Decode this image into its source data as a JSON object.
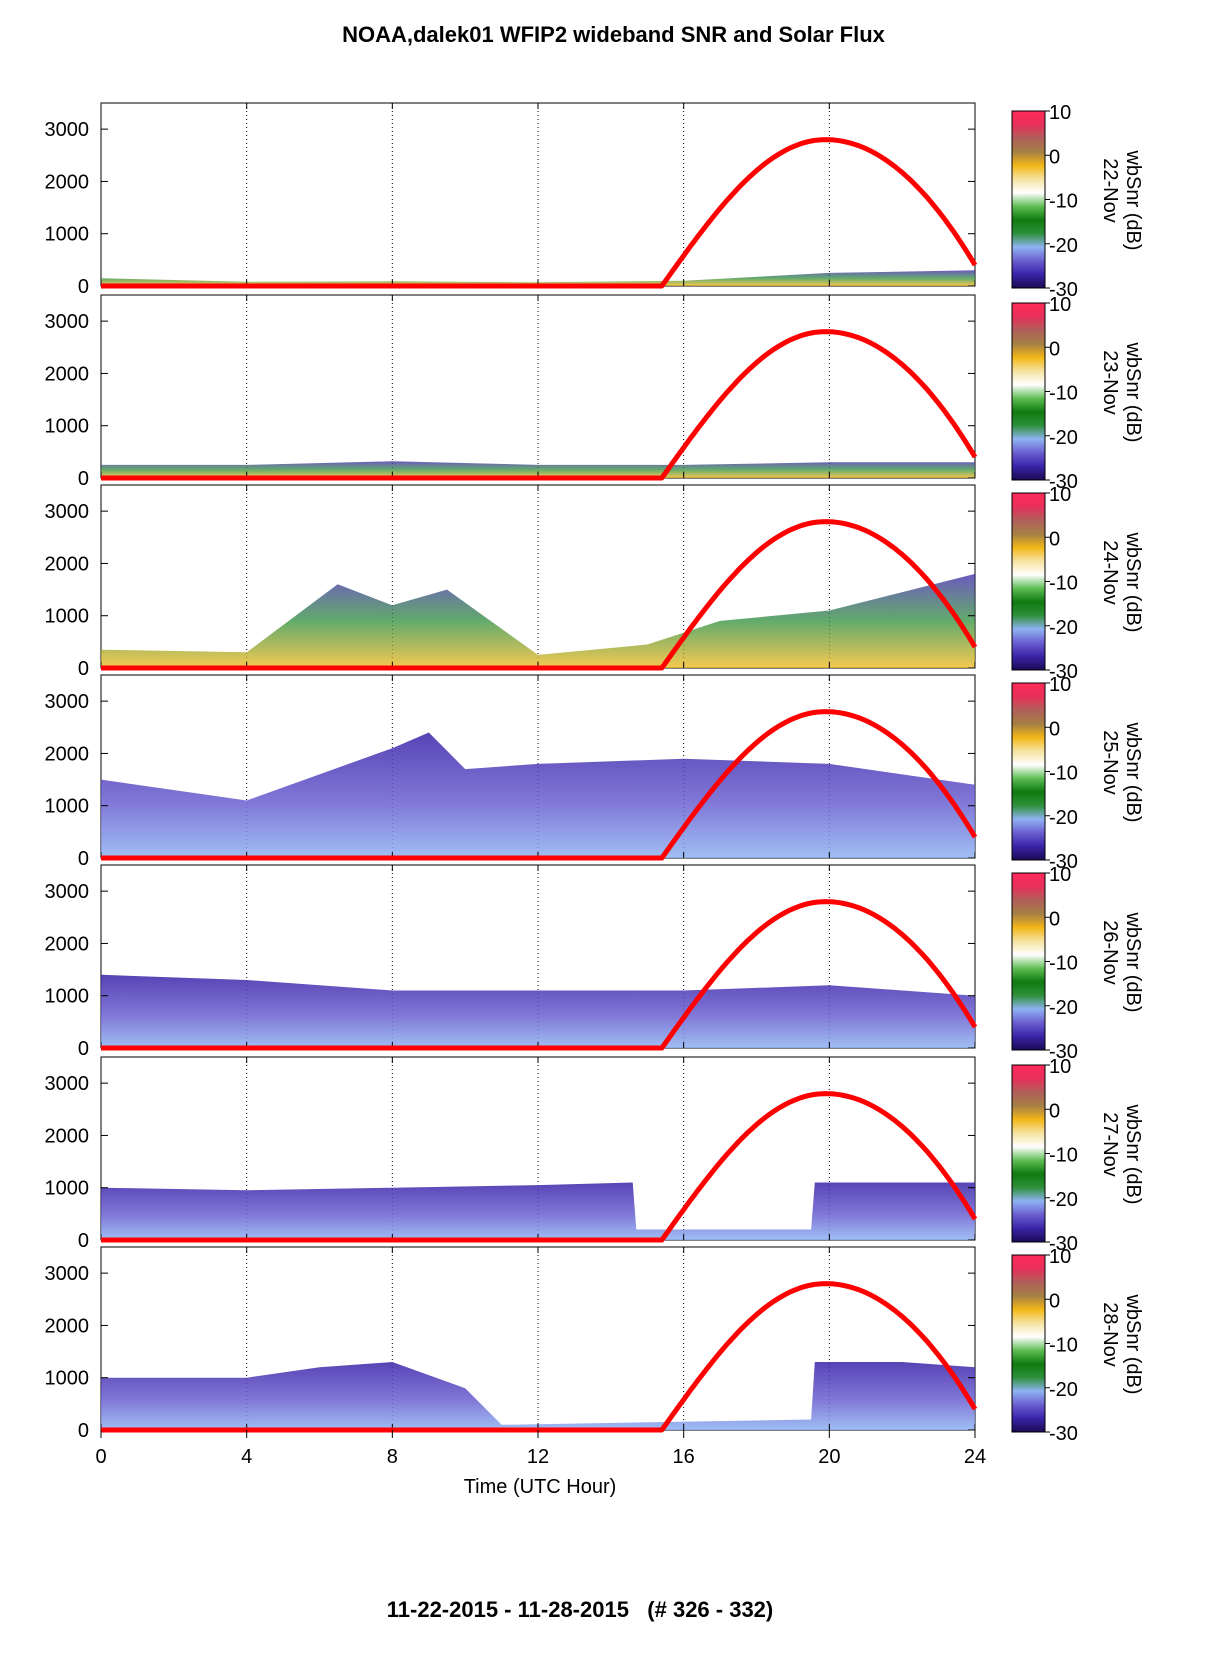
{
  "title": "NOAA,dalek01 WFIP2 wideband SNR and Solar Flux",
  "footer": "11-22-2015 - 11-28-2015   (# 326 - 332)",
  "colors": {
    "solar_curve": "#ff0000",
    "colorbar": [
      "#1a0a55",
      "#3a23a8",
      "#6a5fd0",
      "#8fb3f2",
      "#2e8f3a",
      "#0f7a10",
      "#5fbf55",
      "#ffffff",
      "#f6e3a0",
      "#f2b718",
      "#a57f45",
      "#b0605a",
      "#e8305a",
      "#ff2a5a"
    ]
  },
  "chart_data": {
    "type": "heatmap",
    "panel_count": 7,
    "shared_x": {
      "label": "Time (UTC Hour)",
      "range": [
        0,
        24
      ],
      "ticks": [
        "0",
        "4",
        "8",
        "12",
        "16",
        "20",
        "24"
      ],
      "vertical_grid_at": [
        4,
        8,
        12,
        16,
        20
      ],
      "grid_style": "dotted"
    },
    "y": {
      "range": [
        0,
        3500
      ],
      "ticks": [
        "0",
        "1000",
        "2000",
        "3000"
      ]
    },
    "colorbar": {
      "label": "wbSnr (dB)",
      "range": [
        -30,
        10
      ],
      "ticks": [
        "10",
        "0",
        "-10",
        "-20",
        "-30"
      ]
    },
    "solar_flux": {
      "rise_hour": 15.4,
      "peak_hour": 19.9,
      "peak_value": 2800,
      "end_value_at_24": 400
    },
    "panels": [
      {
        "date": "22-Nov",
        "snr_top_profile": [
          [
            0,
            150
          ],
          [
            4,
            80
          ],
          [
            8,
            90
          ],
          [
            12,
            70
          ],
          [
            16,
            100
          ],
          [
            20,
            250
          ],
          [
            24,
            300
          ]
        ]
      },
      {
        "date": "23-Nov",
        "snr_top_profile": [
          [
            0,
            250
          ],
          [
            4,
            250
          ],
          [
            8,
            320
          ],
          [
            12,
            250
          ],
          [
            16,
            250
          ],
          [
            20,
            300
          ],
          [
            24,
            300
          ]
        ]
      },
      {
        "date": "24-Nov",
        "snr_top_profile": [
          [
            0,
            350
          ],
          [
            4,
            300
          ],
          [
            6.5,
            1600
          ],
          [
            8,
            1200
          ],
          [
            9.5,
            1500
          ],
          [
            12,
            250
          ],
          [
            15,
            450
          ],
          [
            17,
            900
          ],
          [
            20,
            1100
          ],
          [
            24,
            1800
          ]
        ]
      },
      {
        "date": "25-Nov",
        "snr_top_profile": [
          [
            0,
            1500
          ],
          [
            4,
            1100
          ],
          [
            8,
            2100
          ],
          [
            9,
            2400
          ],
          [
            10,
            1700
          ],
          [
            12,
            1800
          ],
          [
            16,
            1900
          ],
          [
            20,
            1800
          ],
          [
            24,
            1400
          ]
        ]
      },
      {
        "date": "26-Nov",
        "snr_top_profile": [
          [
            0,
            1400
          ],
          [
            4,
            1300
          ],
          [
            8,
            1100
          ],
          [
            12,
            1100
          ],
          [
            16,
            1100
          ],
          [
            20,
            1200
          ],
          [
            24,
            1000
          ]
        ]
      },
      {
        "date": "27-Nov",
        "snr_top_profile": [
          [
            0,
            1000
          ],
          [
            4,
            950
          ],
          [
            8,
            1000
          ],
          [
            12,
            1050
          ],
          [
            14.6,
            1100
          ],
          [
            14.7,
            200
          ],
          [
            19.5,
            200
          ],
          [
            19.6,
            1100
          ],
          [
            24,
            1100
          ]
        ]
      },
      {
        "date": "28-Nov",
        "snr_top_profile": [
          [
            0,
            1000
          ],
          [
            4,
            1000
          ],
          [
            6,
            1200
          ],
          [
            8,
            1300
          ],
          [
            10,
            800
          ],
          [
            11,
            100
          ],
          [
            19.5,
            200
          ],
          [
            19.6,
            1300
          ],
          [
            22,
            1300
          ],
          [
            24,
            1200
          ]
        ]
      }
    ]
  }
}
